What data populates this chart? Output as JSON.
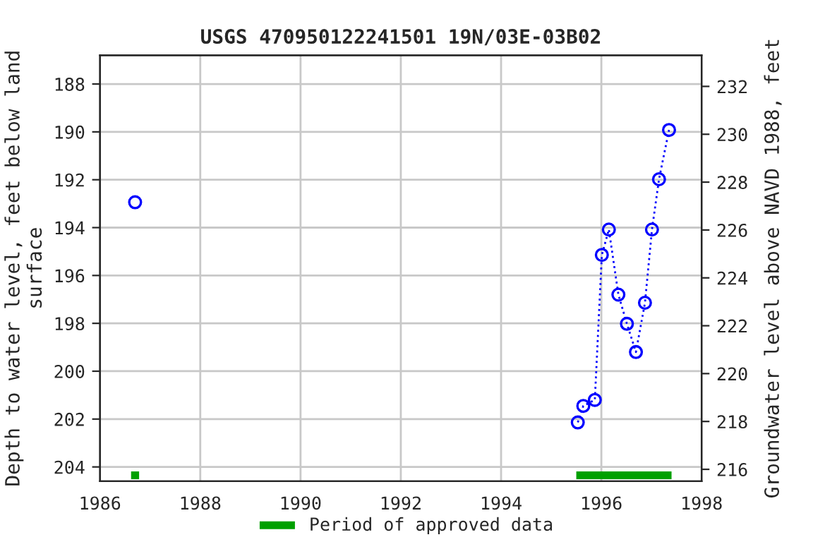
{
  "chart_data": {
    "type": "line",
    "title": "USGS 470950122241501 19N/03E-03B02",
    "ylabel": "Depth to water level, feet below land\nsurface",
    "y2label": "Groundwater level above NAVD 1988, feet",
    "xlim": [
      1986,
      1998
    ],
    "xticks": [
      1986,
      1988,
      1990,
      1992,
      1994,
      1996,
      1998
    ],
    "ylim": [
      204.6,
      186.8
    ],
    "yticks": [
      188,
      190,
      192,
      194,
      196,
      198,
      200,
      202,
      204
    ],
    "y2lim": [
      215.5,
      233.3
    ],
    "y2ticks": [
      216,
      218,
      220,
      222,
      224,
      226,
      228,
      230,
      232
    ],
    "series": [
      {
        "color": "#0000ff",
        "x": [
          1986.7
        ],
        "values": [
          192.94
        ],
        "line_style": "dotted",
        "marker": "circle"
      },
      {
        "color": "#0000ff",
        "x": [
          1995.53,
          1995.64,
          1995.87,
          1996.01,
          1996.15,
          1996.34,
          1996.51,
          1996.69,
          1996.87,
          1997.01,
          1997.15,
          1997.35
        ],
        "values": [
          202.14,
          201.45,
          201.2,
          195.14,
          194.08,
          196.8,
          198.02,
          199.2,
          197.14,
          194.08,
          191.98,
          189.92
        ],
        "line_style": "dotted",
        "marker": "circle"
      },
      {
        "name": "Period of approved data",
        "color": "#00a000",
        "x": [
          1986.62,
          1986.78,
          1986.8,
          1995.5,
          1997.4
        ],
        "values": [
          204.35,
          204.35,
          null,
          204.35,
          204.35
        ],
        "line_style": "solid",
        "marker": "none"
      }
    ],
    "grid": true,
    "legend": "bottom"
  }
}
